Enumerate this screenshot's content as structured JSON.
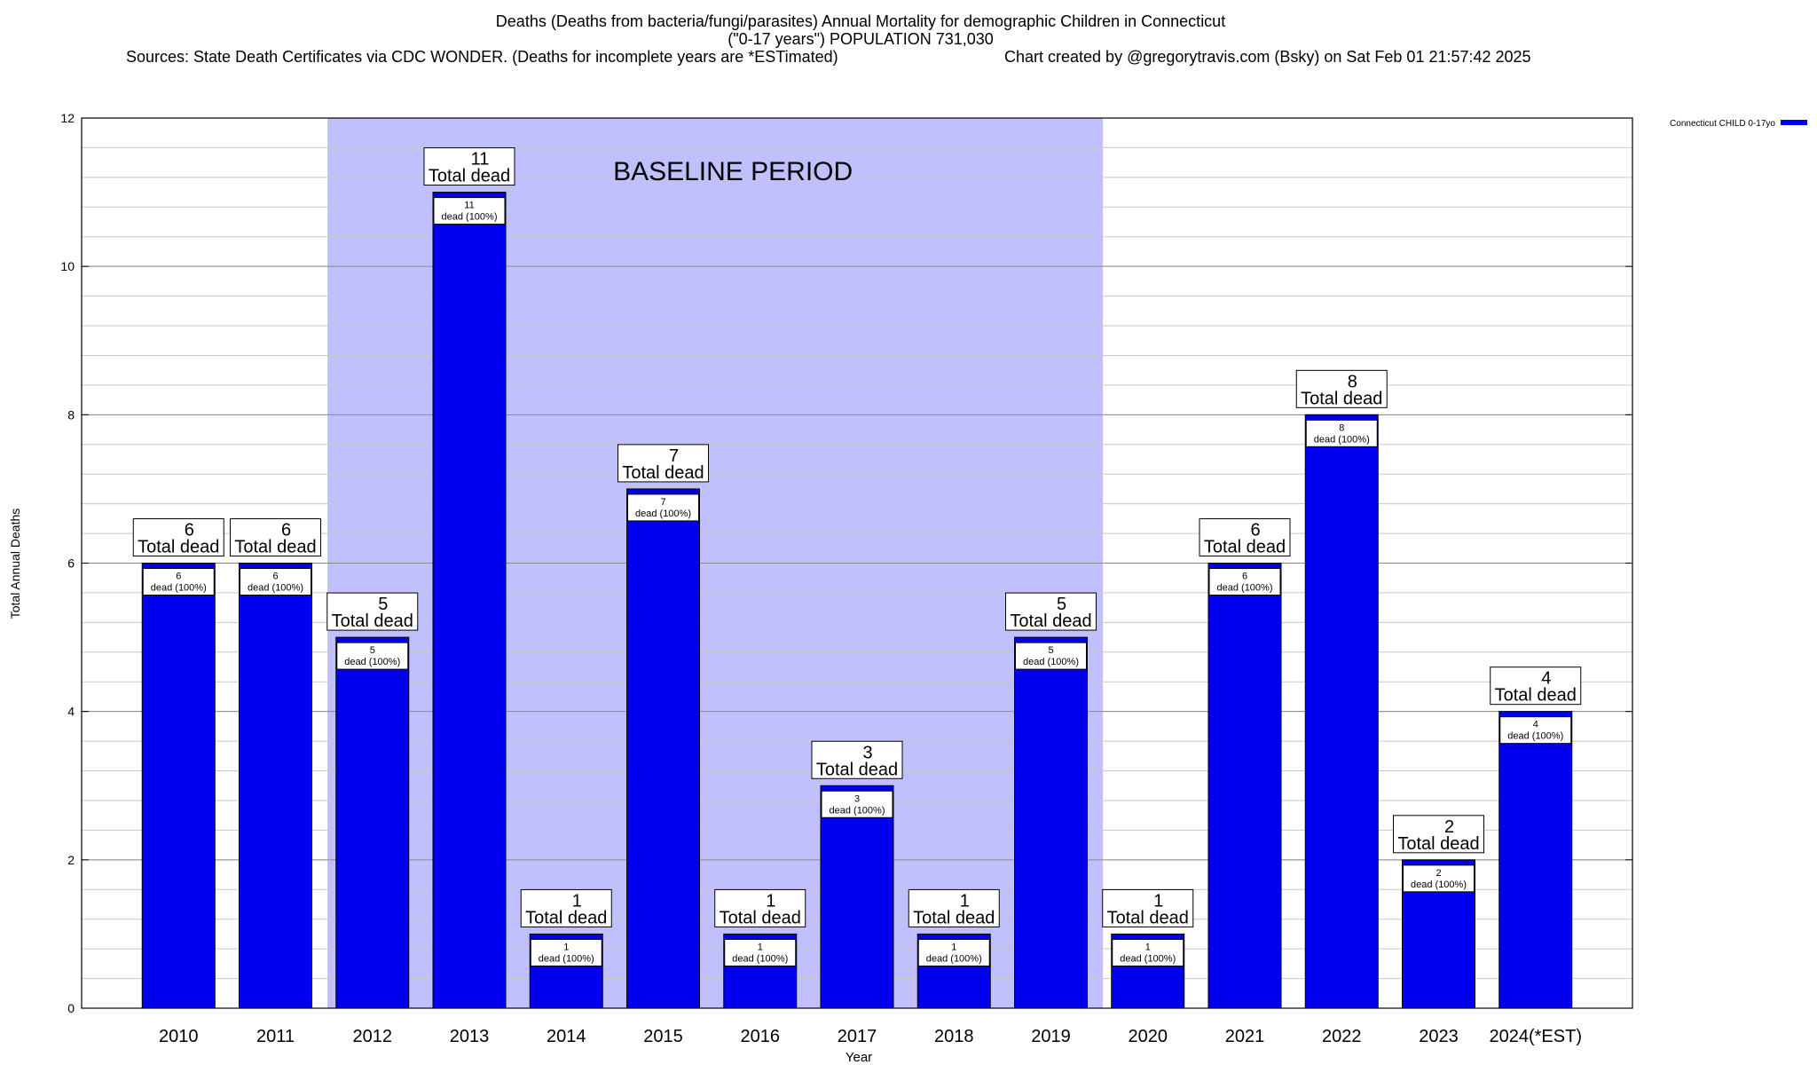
{
  "header": {
    "title_line1": "Deaths (Deaths from bacteria/fungi/parasites) Annual Mortality for demographic Children in Connecticut",
    "title_line2": "(\"0-17 years\") POPULATION 731,030",
    "sources": "Sources: State Death Certificates via CDC WONDER. (Deaths for incomplete years are *ESTimated)",
    "created": "Chart created by @gregorytravis.com (Bsky) on Sat Feb 01 21:57:42 2025"
  },
  "colors": {
    "bar": "#0000ee",
    "baseline_shade": "#c0c0ff",
    "grid": "#c8c8c8"
  },
  "chart_data": {
    "type": "bar",
    "title": "Deaths (Deaths from bacteria/fungi/parasites) Annual Mortality for demographic Children in Connecticut",
    "subtitle": "(\"0-17 years\") POPULATION 731,030",
    "xlabel": "Year",
    "ylabel": "Total Annual Deaths",
    "ylim": [
      0,
      12
    ],
    "yticks": [
      0,
      2,
      4,
      6,
      8,
      10,
      12
    ],
    "grid": true,
    "legend_position": "top-right",
    "categories": [
      "2010",
      "2011",
      "2012",
      "2013",
      "2014",
      "2015",
      "2016",
      "2017",
      "2018",
      "2019",
      "2020",
      "2021",
      "2022",
      "2023",
      "2024(*EST)"
    ],
    "series": [
      {
        "name": "Connecticut CHILD 0-17yo",
        "values": [
          6,
          6,
          5,
          11,
          1,
          7,
          1,
          3,
          1,
          5,
          1,
          6,
          8,
          2,
          4
        ]
      }
    ],
    "total_label_suffix": "Total dead",
    "inner_label_suffix": "dead (100%)",
    "annotations": [
      {
        "text": "BASELINE PERIOD",
        "from_category": "2012",
        "to_category": "2019"
      }
    ]
  }
}
